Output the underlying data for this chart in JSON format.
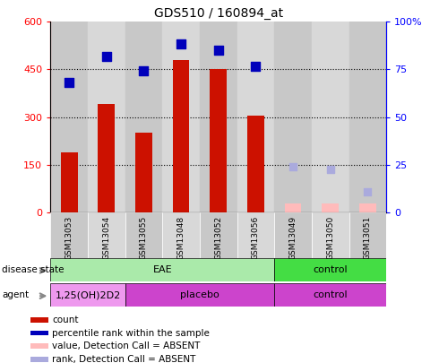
{
  "title": "GDS510 / 160894_at",
  "samples": [
    "GSM13053",
    "GSM13054",
    "GSM13055",
    "GSM13048",
    "GSM13052",
    "GSM13056",
    "GSM13049",
    "GSM13050",
    "GSM13051"
  ],
  "count_values": [
    190,
    340,
    250,
    480,
    450,
    305,
    null,
    null,
    null
  ],
  "count_absent_values": [
    null,
    null,
    null,
    null,
    null,
    null,
    28,
    28,
    28
  ],
  "percentile_values": [
    410,
    490,
    445,
    530,
    510,
    460,
    null,
    null,
    null
  ],
  "percentile_absent_values": [
    null,
    null,
    null,
    null,
    null,
    null,
    145,
    135,
    65
  ],
  "ylim_left": [
    0,
    600
  ],
  "yticks_left": [
    0,
    150,
    300,
    450,
    600
  ],
  "ytick_labels_left": [
    "0",
    "150",
    "300",
    "450",
    "600"
  ],
  "ytick_labels_right": [
    "0",
    "25",
    "50",
    "75",
    "100%"
  ],
  "bar_color": "#cc1100",
  "bar_absent_color": "#ffbbbb",
  "scatter_color": "#0000bb",
  "scatter_absent_color": "#aaaadd",
  "col_colors": [
    "#c8c8c8",
    "#d8d8d8"
  ],
  "disease_state_labels": [
    {
      "label": "EAE",
      "span": [
        0,
        6
      ],
      "color": "#aaeaaa"
    },
    {
      "label": "control",
      "span": [
        6,
        9
      ],
      "color": "#44dd44"
    }
  ],
  "agent_labels": [
    {
      "label": "1,25(OH)2D2",
      "span": [
        0,
        2
      ],
      "color": "#ee99ee"
    },
    {
      "label": "placebo",
      "span": [
        2,
        6
      ],
      "color": "#cc44cc"
    },
    {
      "label": "control",
      "span": [
        6,
        9
      ],
      "color": "#cc44cc"
    }
  ],
  "legend": [
    {
      "color": "#cc1100",
      "label": "count"
    },
    {
      "color": "#0000bb",
      "label": "percentile rank within the sample"
    },
    {
      "color": "#ffbbbb",
      "label": "value, Detection Call = ABSENT"
    },
    {
      "color": "#aaaadd",
      "label": "rank, Detection Call = ABSENT"
    }
  ],
  "grid_dotted_values": [
    150,
    300,
    450
  ],
  "bar_width": 0.45
}
